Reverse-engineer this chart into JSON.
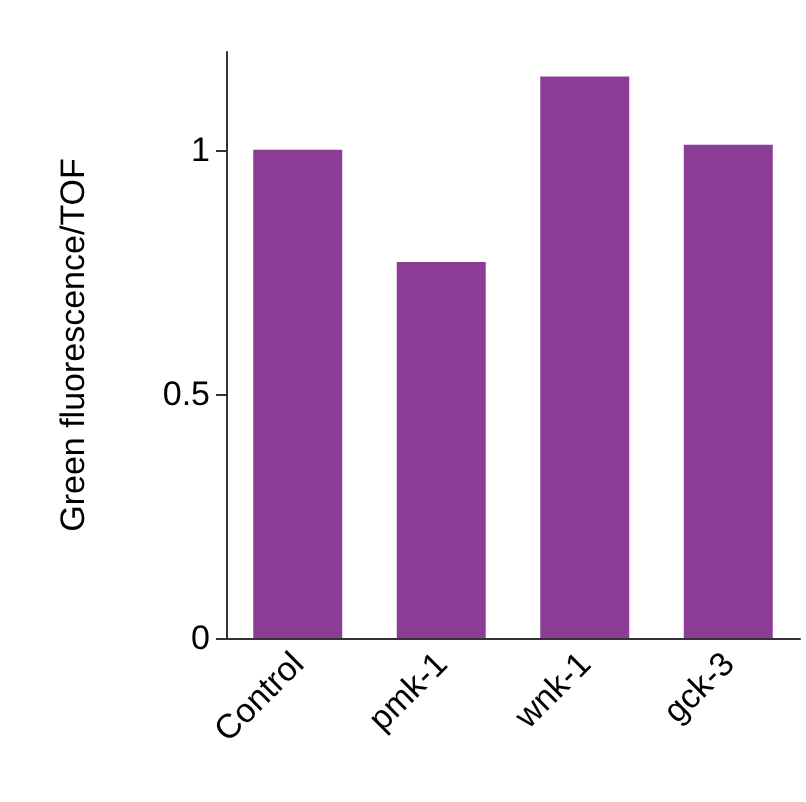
{
  "chart_data": {
    "type": "bar",
    "ylabel": "Green fluorescence/TOF",
    "categories": [
      "Control",
      "pmk-1",
      "wnk-1",
      "gck-3"
    ],
    "values": [
      1.0,
      0.77,
      1.15,
      1.01
    ],
    "color": "#8b3d96",
    "ylim": [
      0,
      1.2
    ],
    "yticks": [
      0,
      0.5,
      1
    ],
    "grid": false
  }
}
